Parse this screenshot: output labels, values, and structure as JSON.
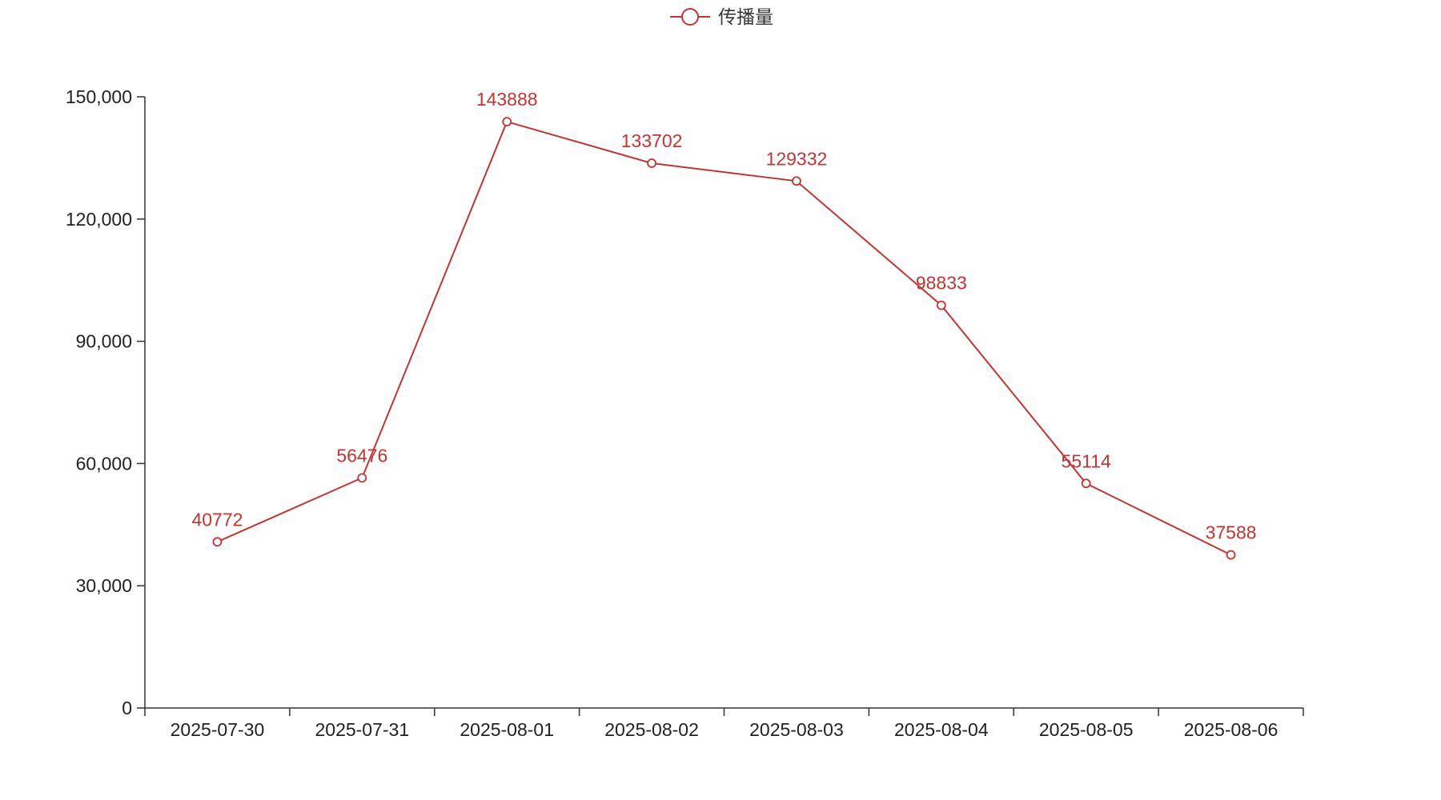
{
  "chart_data": {
    "type": "line",
    "categories": [
      "2025-07-30",
      "2025-07-31",
      "2025-08-01",
      "2025-08-02",
      "2025-08-03",
      "2025-08-04",
      "2025-08-05",
      "2025-08-06"
    ],
    "series": [
      {
        "name": "传播量",
        "values": [
          40772,
          56476,
          143888,
          133702,
          129332,
          98833,
          55114,
          37588
        ],
        "color": "#c23531",
        "data_labels": true,
        "marker": "hollow-circle"
      }
    ],
    "yticks": [
      0,
      30000,
      60000,
      90000,
      120000,
      150000
    ],
    "ytick_labels": [
      "0",
      "30,000",
      "60,000",
      "90,000",
      "120,000",
      "150,000"
    ],
    "ylim": [
      0,
      150000
    ],
    "grid": false,
    "legend": {
      "position": "top-center",
      "icon": "line-circle"
    }
  }
}
